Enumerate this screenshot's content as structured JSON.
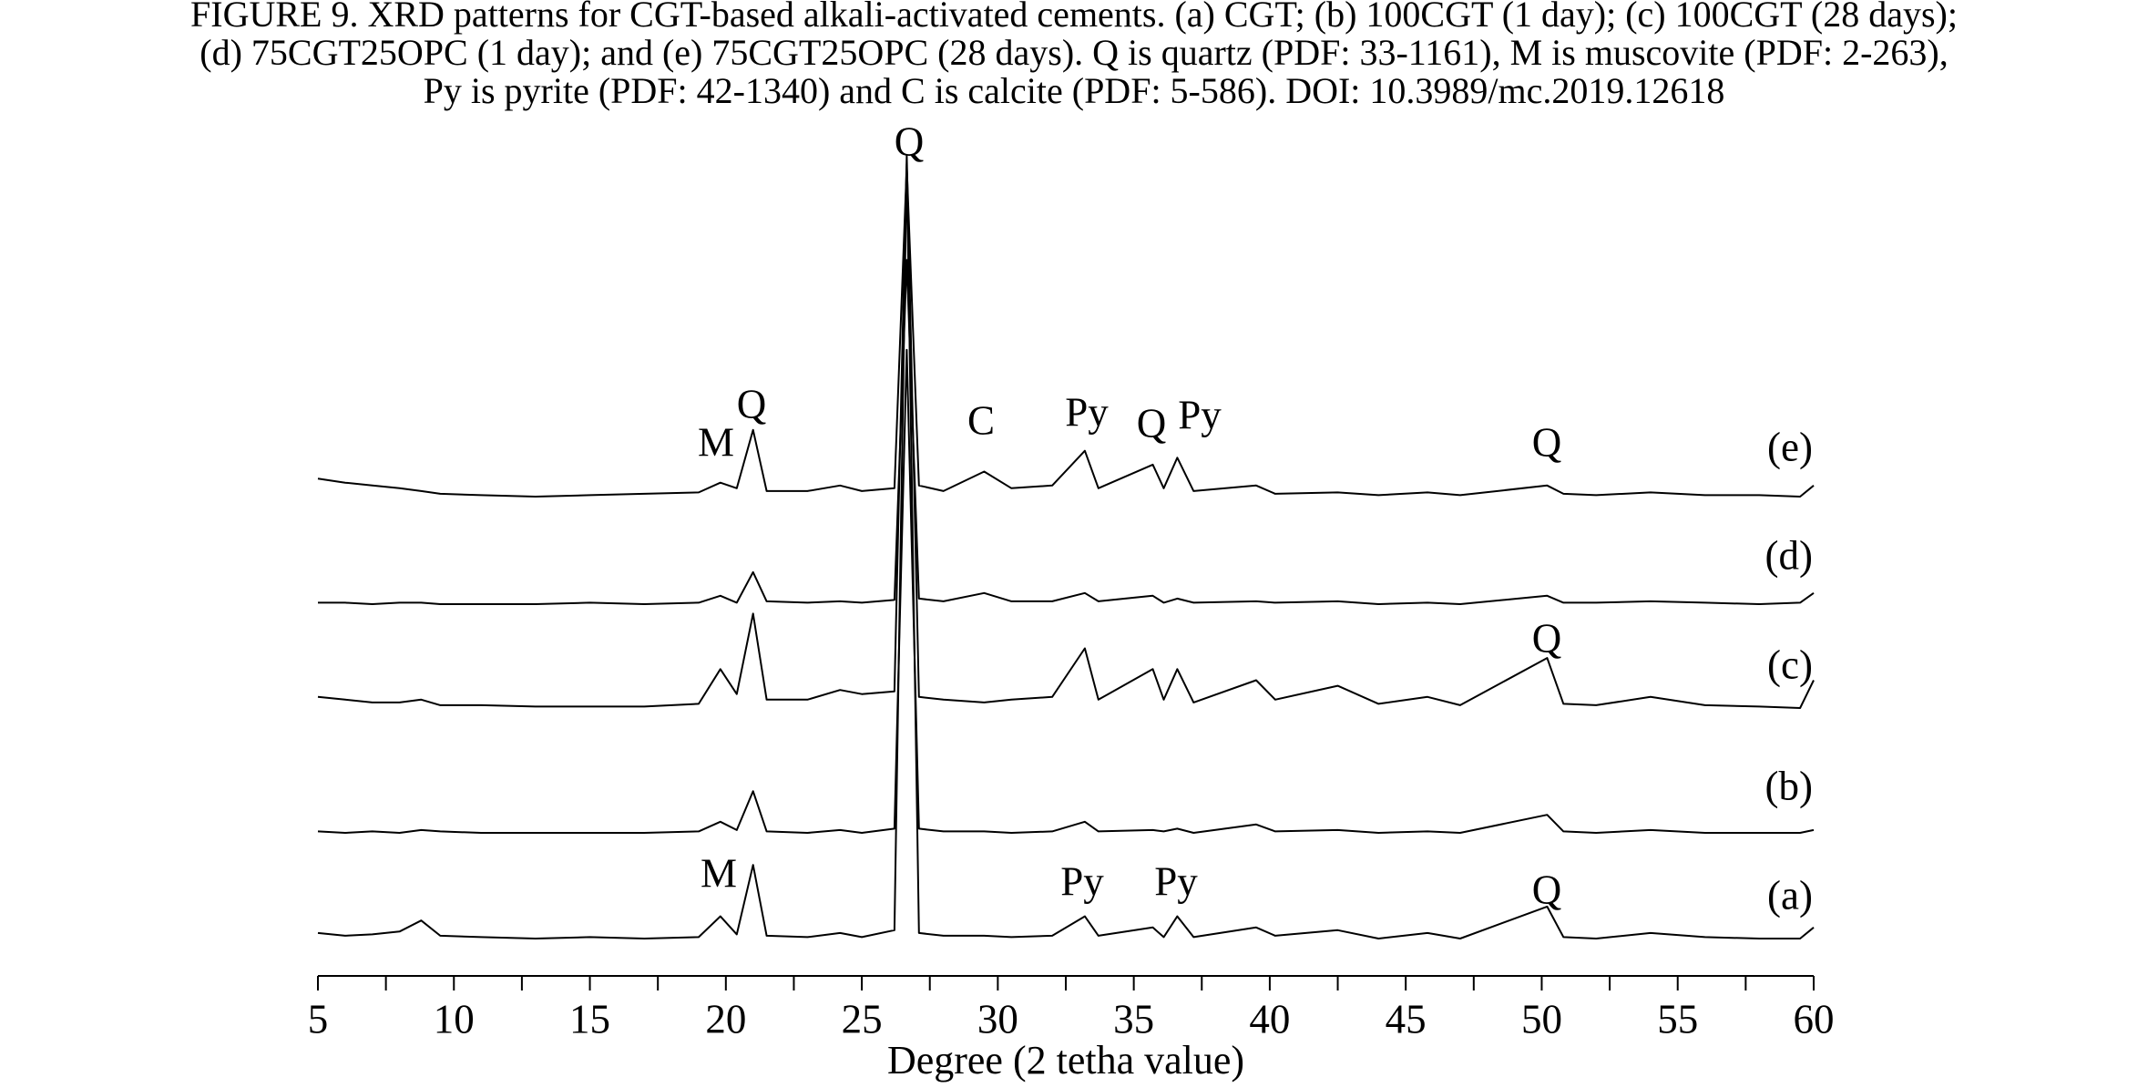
{
  "chart_data": {
    "type": "line",
    "title": [
      "FIGURE 9.    XRD patterns for CGT-based alkali-activated cements. (a) CGT; (b) 100CGT (1 day); (c) 100CGT (28 days);",
      "(d) 75CGT25OPC (1 day); and (e) 75CGT25OPC (28 days). Q is quartz (PDF: 33-1161), M is muscovite (PDF: 2-263),",
      "Py is pyrite (PDF: 42-1340) and C is calcite (PDF: 5-586). DOI: 10.3989/mc.2019.12618"
    ],
    "x_label": "Degree (2 tetha value)",
    "xlim": [
      5,
      60
    ],
    "xticks": [
      5,
      10,
      15,
      20,
      25,
      30,
      35,
      40,
      45,
      50,
      55,
      60
    ],
    "xminorticks": [
      7.5,
      12.5,
      17.5,
      22.5,
      27.5,
      32.5,
      37.5,
      42.5,
      47.5,
      52.5,
      57.5
    ],
    "ylim": [
      0,
      560
    ],
    "x": [
      5,
      6,
      7,
      8,
      8.8,
      9.5,
      11,
      13,
      15,
      17,
      19,
      19.8,
      20.4,
      21,
      21.5,
      23,
      24.2,
      25,
      26.2,
      26.65,
      27.1,
      28,
      29.5,
      30.5,
      32,
      33.2,
      33.7,
      35.7,
      36.1,
      36.6,
      37.2,
      39.5,
      40.2,
      42.5,
      44,
      45.8,
      47,
      50.2,
      50.8,
      52,
      54,
      56,
      58,
      59.5,
      60
    ],
    "series": [
      {
        "name": "(a)",
        "color": "#000000",
        "values": [
          6,
          4,
          5,
          7,
          15,
          4,
          3,
          2,
          3,
          2,
          3,
          18,
          5,
          55,
          4,
          3,
          6,
          3,
          8,
          560,
          6,
          4,
          4,
          3,
          4,
          18,
          4,
          10,
          3,
          18,
          3,
          10,
          4,
          8,
          2,
          6,
          2,
          25,
          3,
          2,
          6,
          3,
          2,
          2,
          10
        ]
      },
      {
        "name": "(b)",
        "color": "#000000",
        "values": [
          3,
          2,
          3,
          2,
          4,
          3,
          2,
          2,
          2,
          2,
          3,
          10,
          4,
          32,
          3,
          2,
          4,
          2,
          5,
          350,
          5,
          3,
          3,
          2,
          3,
          10,
          3,
          4,
          3,
          5,
          2,
          8,
          3,
          4,
          2,
          3,
          2,
          15,
          3,
          2,
          4,
          2,
          2,
          2,
          4
        ]
      },
      {
        "name": "(c)",
        "color": "#000000",
        "values": [
          10,
          8,
          6,
          6,
          8,
          4,
          4,
          3,
          3,
          3,
          5,
          30,
          12,
          70,
          8,
          8,
          15,
          12,
          14,
          400,
          10,
          8,
          6,
          8,
          10,
          45,
          8,
          30,
          8,
          30,
          6,
          22,
          8,
          18,
          5,
          10,
          4,
          38,
          5,
          4,
          10,
          4,
          3,
          2,
          22
        ]
      },
      {
        "name": "(d)",
        "color": "#000000",
        "values": [
          3,
          3,
          2,
          3,
          3,
          2,
          2,
          2,
          3,
          2,
          3,
          8,
          3,
          25,
          4,
          3,
          4,
          3,
          5,
          250,
          6,
          4,
          10,
          4,
          4,
          10,
          4,
          8,
          3,
          6,
          3,
          4,
          3,
          4,
          2,
          3,
          2,
          8,
          3,
          3,
          4,
          3,
          2,
          3,
          10
        ]
      },
      {
        "name": "(e)",
        "color": "#000000",
        "values": [
          15,
          12,
          10,
          8,
          6,
          4,
          3,
          2,
          3,
          4,
          5,
          12,
          8,
          50,
          6,
          6,
          10,
          6,
          8,
          240,
          10,
          6,
          20,
          8,
          10,
          35,
          8,
          25,
          8,
          30,
          6,
          10,
          4,
          5,
          3,
          5,
          3,
          10,
          4,
          3,
          5,
          3,
          3,
          2,
          10
        ]
      }
    ],
    "annotations": [
      "Q",
      "M",
      "Q",
      "C",
      "Py",
      "Q",
      "Py",
      "Q",
      "Q",
      "M",
      "Py",
      "Py",
      "Q"
    ]
  }
}
